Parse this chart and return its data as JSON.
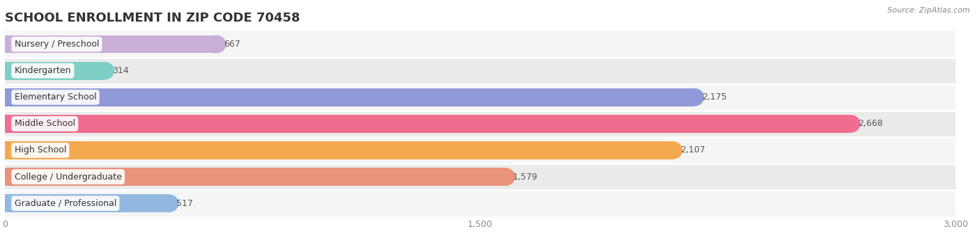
{
  "title": "SCHOOL ENROLLMENT IN ZIP CODE 70458",
  "source": "Source: ZipAtlas.com",
  "categories": [
    "Nursery / Preschool",
    "Kindergarten",
    "Elementary School",
    "Middle School",
    "High School",
    "College / Undergraduate",
    "Graduate / Professional"
  ],
  "values": [
    667,
    314,
    2175,
    2668,
    2107,
    1579,
    517
  ],
  "bar_colors": [
    "#c9aed6",
    "#7ecfc4",
    "#9099d8",
    "#f06d8f",
    "#f5a94e",
    "#e8937a",
    "#90b8e0"
  ],
  "xlim": [
    0,
    3000
  ],
  "xticks": [
    0,
    1500,
    3000
  ],
  "background_color": "#ffffff",
  "title_fontsize": 13,
  "label_fontsize": 9,
  "value_fontsize": 9,
  "bar_height": 0.68,
  "row_bg_even": "#f5f5f5",
  "row_bg_odd": "#ebebeb",
  "separator_color": "#ffffff",
  "title_color": "#333333",
  "value_color": "#555555",
  "label_color": "#333333",
  "source_color": "#888888",
  "tick_color": "#888888"
}
